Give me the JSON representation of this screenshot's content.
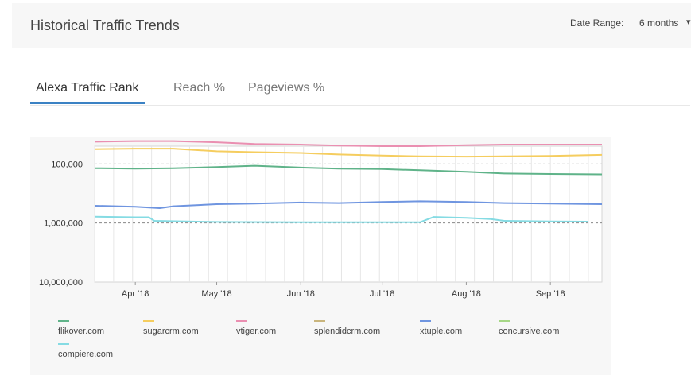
{
  "header": {
    "title": "Historical Traffic Trends",
    "date_range_label": "Date Range:",
    "date_range_value": "6 months"
  },
  "tabs": [
    {
      "label": "Alexa Traffic Rank",
      "active": true
    },
    {
      "label": "Reach %",
      "active": false
    },
    {
      "label": "Pageviews %",
      "active": false
    }
  ],
  "chart_data": {
    "type": "line",
    "y_scale": "log-reversed",
    "ylim": [
      10000000,
      50000
    ],
    "y_ticks": [
      {
        "value": 100000,
        "label": "100,000"
      },
      {
        "value": 1000000,
        "label": "1,000,000"
      },
      {
        "value": 10000000,
        "label": "10,000,000"
      }
    ],
    "x_ticks": [
      {
        "date": "2018-04-01",
        "label": "Apr '18"
      },
      {
        "date": "2018-05-01",
        "label": "May '18"
      },
      {
        "date": "2018-06-01",
        "label": "Jun '18"
      },
      {
        "date": "2018-07-01",
        "label": "Jul '18"
      },
      {
        "date": "2018-08-01",
        "label": "Aug '18"
      },
      {
        "date": "2018-09-01",
        "label": "Sep '18"
      }
    ],
    "xlim": [
      "2018-03-17",
      "2018-09-20"
    ],
    "grid": "dashed at labeled ticks",
    "legend": "bottom",
    "series": [
      {
        "name": "flikover.com",
        "color": "#5fb389",
        "x": [
          "2018-03-17",
          "2018-04-01",
          "2018-04-15",
          "2018-05-01",
          "2018-05-15",
          "2018-06-01",
          "2018-06-15",
          "2018-07-01",
          "2018-07-15",
          "2018-08-01",
          "2018-08-15",
          "2018-09-01",
          "2018-09-20"
        ],
        "y": [
          118000,
          120000,
          118000,
          113000,
          107000,
          115000,
          120000,
          122000,
          128000,
          136000,
          145000,
          148000,
          150000
        ]
      },
      {
        "name": "sugarcrm.com",
        "color": "#f5cd5f",
        "x": [
          "2018-03-17",
          "2018-04-01",
          "2018-04-15",
          "2018-05-01",
          "2018-05-15",
          "2018-06-01",
          "2018-06-15",
          "2018-07-01",
          "2018-07-15",
          "2018-08-01",
          "2018-08-15",
          "2018-09-01",
          "2018-09-20"
        ],
        "y": [
          56000,
          55000,
          55000,
          61000,
          63000,
          65000,
          69000,
          72000,
          74000,
          75000,
          74000,
          73000,
          70000
        ]
      },
      {
        "name": "vtiger.com",
        "color": "#ea8fb1",
        "x": [
          "2018-03-17",
          "2018-04-01",
          "2018-04-15",
          "2018-05-01",
          "2018-05-15",
          "2018-06-01",
          "2018-06-15",
          "2018-07-01",
          "2018-07-15",
          "2018-08-01",
          "2018-08-15",
          "2018-09-01",
          "2018-09-20"
        ],
        "y": [
          42000,
          41000,
          41000,
          43000,
          46000,
          47000,
          49000,
          50000,
          50000,
          48000,
          47000,
          47000,
          47000
        ]
      },
      {
        "name": "splendidcrm.com",
        "color": "#c9b57d",
        "x": [],
        "y": []
      },
      {
        "name": "xtuple.com",
        "color": "#6f95e0",
        "x": [
          "2018-03-17",
          "2018-04-01",
          "2018-04-10",
          "2018-04-15",
          "2018-05-01",
          "2018-05-15",
          "2018-06-01",
          "2018-06-15",
          "2018-07-01",
          "2018-07-15",
          "2018-08-01",
          "2018-08-15",
          "2018-09-01",
          "2018-09-20"
        ],
        "y": [
          510000,
          530000,
          560000,
          520000,
          480000,
          470000,
          450000,
          460000,
          440000,
          430000,
          440000,
          460000,
          470000,
          480000
        ]
      },
      {
        "name": "concursive.com",
        "color": "#a6d786",
        "x": [],
        "y": []
      },
      {
        "name": "compiere.com",
        "color": "#85dbe3",
        "x": [
          "2018-03-17",
          "2018-04-01",
          "2018-04-06",
          "2018-04-08",
          "2018-05-01",
          "2018-06-01",
          "2018-07-01",
          "2018-07-15",
          "2018-07-20",
          "2018-08-01",
          "2018-08-10",
          "2018-08-15",
          "2018-09-01",
          "2018-09-15"
        ],
        "y": [
          780000,
          800000,
          800000,
          920000,
          960000,
          970000,
          970000,
          970000,
          790000,
          820000,
          860000,
          920000,
          940000,
          950000
        ]
      }
    ]
  }
}
